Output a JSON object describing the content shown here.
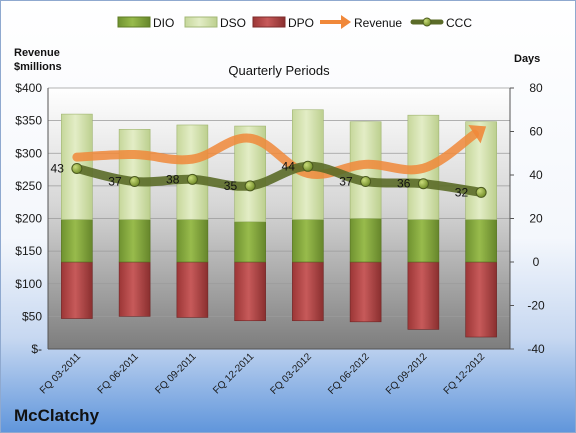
{
  "company": "McClatchy",
  "chart_data": {
    "type": "bar",
    "title": "Quarterly Periods",
    "y_left_label": [
      "Revenue",
      "$millions"
    ],
    "y_right_label": "Days",
    "y_left_lim": [
      0,
      400
    ],
    "y_left_ticks": [
      "$-",
      "$50",
      "$100",
      "$150",
      "$200",
      "$250",
      "$300",
      "$350",
      "$400"
    ],
    "y_right_lim": [
      -40,
      80
    ],
    "y_right_ticks": [
      "-40",
      "-20",
      "0",
      "20",
      "40",
      "60",
      "80"
    ],
    "categories": [
      "FQ 03-2011",
      "FQ 06-2011",
      "FQ 09-2011",
      "FQ 12-2011",
      "FQ 03-2012",
      "FQ 06-2012",
      "FQ 09-2012",
      "FQ 12-2012"
    ],
    "legend": [
      "DIO",
      "DSO",
      "DPO",
      "Revenue",
      "CCC"
    ],
    "series": [
      {
        "name": "DIO",
        "axis": "right",
        "color": "#8db040",
        "values": [
          19.5,
          19.5,
          19.5,
          18.5,
          19.5,
          20.0,
          19.5,
          19.5
        ]
      },
      {
        "name": "DSO",
        "axis": "right",
        "color": "#d7e4b0",
        "values": [
          48.5,
          41.5,
          43.5,
          44.0,
          50.5,
          44.5,
          48.0,
          45.0
        ]
      },
      {
        "name": "DPO",
        "axis": "right",
        "color": "#b84a4a",
        "values": [
          -26.0,
          -25.0,
          -25.5,
          -27.0,
          -27.0,
          -27.5,
          -31.0,
          -34.5
        ]
      },
      {
        "name": "Revenue",
        "axis": "left",
        "color": "#f0883a",
        "values": [
          294,
          298,
          291,
          323,
          269,
          283,
          277,
          336
        ]
      },
      {
        "name": "CCC",
        "axis": "right",
        "color": "#5b6b28",
        "values": [
          43,
          37,
          38,
          35,
          44,
          37,
          36,
          32
        ]
      }
    ]
  }
}
